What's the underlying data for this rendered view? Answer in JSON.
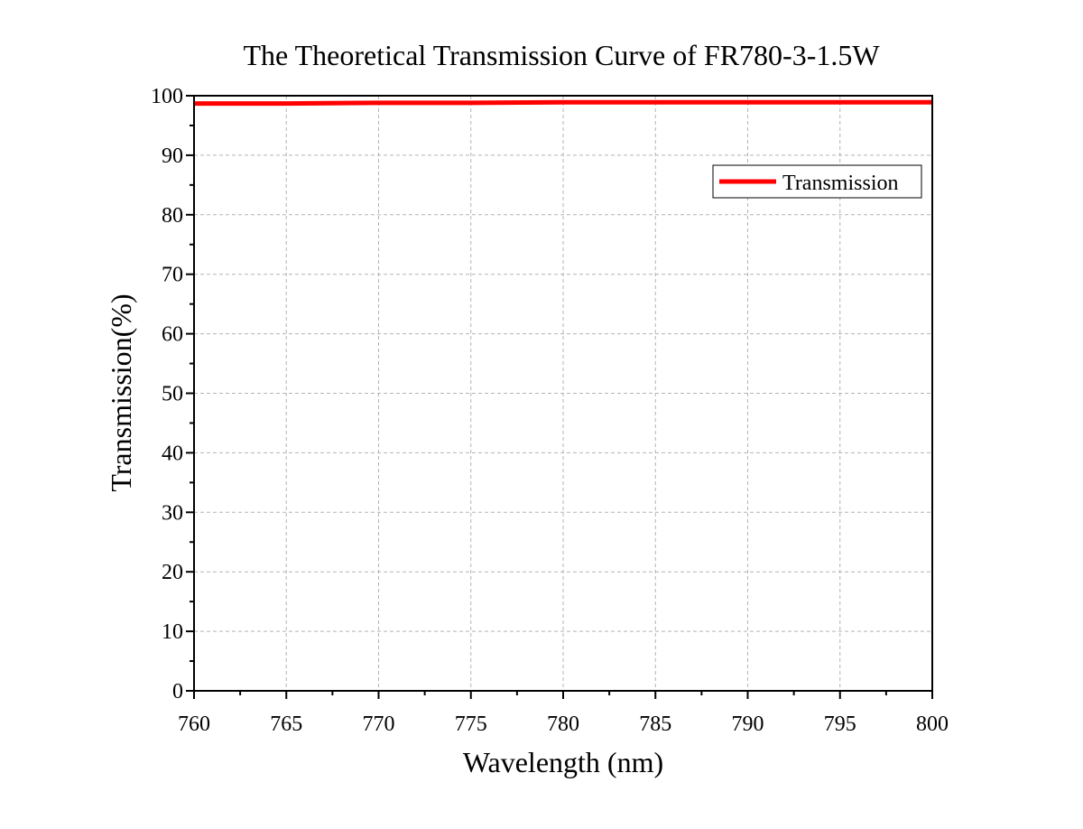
{
  "chart_data": {
    "type": "line",
    "title": "The Theoretical Transmission Curve of FR780-3-1.5W",
    "xlabel": "Wavelength (nm)",
    "ylabel": "Transmission(%)",
    "xlim": [
      760,
      800
    ],
    "ylim": [
      0,
      100
    ],
    "x_ticks": [
      "760",
      "765",
      "770",
      "775",
      "780",
      "785",
      "790",
      "795",
      "800"
    ],
    "y_ticks": [
      "0",
      "10",
      "20",
      "30",
      "40",
      "50",
      "60",
      "70",
      "80",
      "90",
      "100"
    ],
    "grid": true,
    "legend_position": "top-right",
    "series": [
      {
        "name": "Transmission",
        "color": "#ff0000",
        "x": [
          760,
          765,
          770,
          775,
          780,
          785,
          790,
          795,
          800
        ],
        "y": [
          98.7,
          98.7,
          98.8,
          98.8,
          98.9,
          98.9,
          98.9,
          98.9,
          98.9
        ]
      }
    ]
  }
}
